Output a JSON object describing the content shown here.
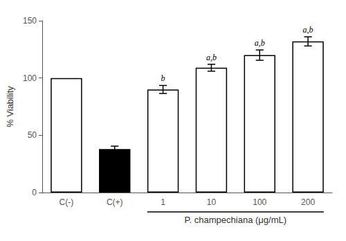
{
  "chart_data": {
    "type": "bar",
    "categories": [
      "C(-)",
      "C(+)",
      "1",
      "10",
      "100",
      "200"
    ],
    "values": [
      100.0,
      38.0,
      90.0,
      109.0,
      120.0,
      132.0
    ],
    "errors": [
      null,
      2.5,
      3.5,
      3.0,
      4.5,
      4.0
    ],
    "colors": [
      "white",
      "black",
      "white",
      "white",
      "white",
      "white"
    ],
    "annotations": [
      null,
      null,
      "b",
      "a,b",
      "a,b",
      "a,b"
    ],
    "ylabel": "% Viability",
    "xlabel": "P. champechiana (μg/mL)",
    "ylim": [
      0,
      150
    ],
    "yticks": [
      0,
      50,
      100,
      150
    ],
    "grid": false
  }
}
